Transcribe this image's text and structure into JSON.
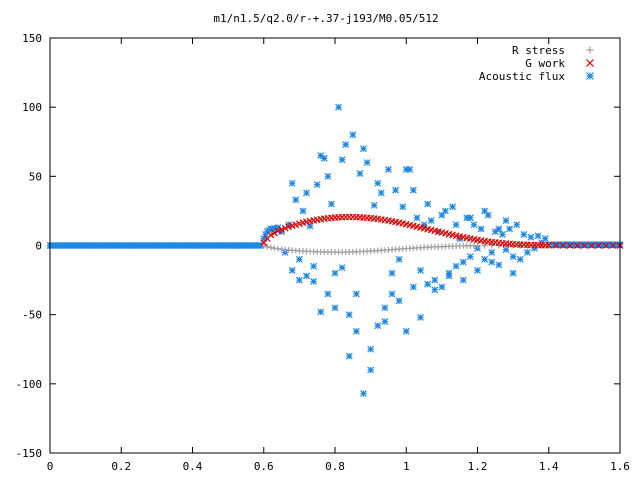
{
  "chart_data": {
    "type": "scatter",
    "title": "m1/n1.5/q2.0/r-+.37-j193/M0.05/512",
    "xlabel": "",
    "ylabel": "",
    "xlim": [
      0,
      1.6
    ],
    "ylim": [
      -150,
      150
    ],
    "grid": false,
    "legend_position": "top-right",
    "x_ticks": [
      "0",
      "0.2",
      "0.4",
      "0.6",
      "0.8",
      "1",
      "1.2",
      "1.4",
      "1.6"
    ],
    "x_tick_values": [
      0,
      0.2,
      0.4,
      0.6,
      0.8,
      1.0,
      1.2,
      1.4,
      1.6
    ],
    "y_ticks": [
      "150",
      "100",
      "50",
      "0",
      "-50",
      "-100",
      "-150"
    ],
    "y_tick_values": [
      150,
      100,
      50,
      0,
      -50,
      -100,
      -150
    ],
    "series": [
      {
        "name": "R stress",
        "marker": "plus",
        "color": "#a0a0a0",
        "points": [
          [
            0.6,
            0.0
          ],
          [
            0.61,
            -1.0
          ],
          [
            0.62,
            -1.5
          ],
          [
            0.63,
            -2.0
          ],
          [
            0.64,
            -2.3
          ],
          [
            0.65,
            -2.7
          ],
          [
            0.66,
            -3.0
          ],
          [
            0.67,
            -3.2
          ],
          [
            0.68,
            -3.5
          ],
          [
            0.69,
            -3.7
          ],
          [
            0.7,
            -3.9
          ],
          [
            0.71,
            -4.0
          ],
          [
            0.72,
            -4.2
          ],
          [
            0.73,
            -4.3
          ],
          [
            0.74,
            -4.4
          ],
          [
            0.75,
            -4.5
          ],
          [
            0.76,
            -4.6
          ],
          [
            0.77,
            -4.7
          ],
          [
            0.78,
            -4.7
          ],
          [
            0.79,
            -4.8
          ],
          [
            0.8,
            -4.8
          ],
          [
            0.81,
            -4.8
          ],
          [
            0.82,
            -4.8
          ],
          [
            0.83,
            -4.8
          ],
          [
            0.84,
            -4.7
          ],
          [
            0.85,
            -4.6
          ],
          [
            0.86,
            -4.5
          ],
          [
            0.87,
            -4.4
          ],
          [
            0.88,
            -4.3
          ],
          [
            0.89,
            -4.2
          ],
          [
            0.9,
            -4.0
          ],
          [
            0.91,
            -3.9
          ],
          [
            0.92,
            -3.7
          ],
          [
            0.93,
            -3.5
          ],
          [
            0.94,
            -3.3
          ],
          [
            0.95,
            -3.2
          ],
          [
            0.96,
            -3.0
          ],
          [
            0.97,
            -2.8
          ],
          [
            0.98,
            -2.6
          ],
          [
            0.99,
            -2.4
          ],
          [
            1.0,
            -2.2
          ],
          [
            1.01,
            -2.1
          ],
          [
            1.02,
            -1.9
          ],
          [
            1.03,
            -1.7
          ],
          [
            1.04,
            -1.6
          ],
          [
            1.05,
            -1.4
          ],
          [
            1.06,
            -1.3
          ],
          [
            1.07,
            -1.1
          ],
          [
            1.08,
            -1.0
          ],
          [
            1.09,
            -0.9
          ],
          [
            1.1,
            -0.8
          ],
          [
            1.11,
            -0.7
          ],
          [
            1.12,
            -0.6
          ],
          [
            1.13,
            -0.5
          ],
          [
            1.14,
            -0.4
          ],
          [
            1.15,
            -0.3
          ],
          [
            1.16,
            -0.3
          ],
          [
            1.17,
            -0.2
          ],
          [
            1.18,
            -0.2
          ],
          [
            1.19,
            -0.1
          ],
          [
            1.2,
            -0.1
          ],
          [
            1.22,
            -0.1
          ],
          [
            1.24,
            0.0
          ],
          [
            1.26,
            0.0
          ],
          [
            1.28,
            0.0
          ],
          [
            1.3,
            0.0
          ],
          [
            1.32,
            0.0
          ],
          [
            1.34,
            0.0
          ],
          [
            1.36,
            0.0
          ],
          [
            1.38,
            0.0
          ],
          [
            1.4,
            0.0
          ]
        ]
      },
      {
        "name": "G work",
        "marker": "cross",
        "color": "#e00000",
        "points": [
          [
            0.6,
            2.0
          ],
          [
            0.61,
            5.0
          ],
          [
            0.62,
            7.5
          ],
          [
            0.63,
            9.0
          ],
          [
            0.64,
            10.5
          ],
          [
            0.65,
            11.5
          ],
          [
            0.66,
            12.5
          ],
          [
            0.67,
            13.5
          ],
          [
            0.68,
            14.3
          ],
          [
            0.69,
            15.0
          ],
          [
            0.7,
            15.8
          ],
          [
            0.71,
            16.5
          ],
          [
            0.72,
            17.0
          ],
          [
            0.73,
            17.6
          ],
          [
            0.74,
            18.1
          ],
          [
            0.75,
            18.6
          ],
          [
            0.76,
            19.0
          ],
          [
            0.77,
            19.4
          ],
          [
            0.78,
            19.7
          ],
          [
            0.79,
            20.0
          ],
          [
            0.8,
            20.2
          ],
          [
            0.81,
            20.4
          ],
          [
            0.82,
            20.5
          ],
          [
            0.83,
            20.6
          ],
          [
            0.84,
            20.6
          ],
          [
            0.85,
            20.6
          ],
          [
            0.86,
            20.5
          ],
          [
            0.87,
            20.4
          ],
          [
            0.88,
            20.2
          ],
          [
            0.89,
            20.0
          ],
          [
            0.9,
            19.8
          ],
          [
            0.91,
            19.5
          ],
          [
            0.92,
            19.2
          ],
          [
            0.93,
            18.8
          ],
          [
            0.94,
            18.4
          ],
          [
            0.95,
            18.0
          ],
          [
            0.96,
            17.5
          ],
          [
            0.97,
            17.0
          ],
          [
            0.98,
            16.5
          ],
          [
            0.99,
            16.0
          ],
          [
            1.0,
            15.4
          ],
          [
            1.01,
            14.8
          ],
          [
            1.02,
            14.2
          ],
          [
            1.03,
            13.6
          ],
          [
            1.04,
            13.0
          ],
          [
            1.05,
            12.4
          ],
          [
            1.06,
            11.8
          ],
          [
            1.07,
            11.2
          ],
          [
            1.08,
            10.6
          ],
          [
            1.09,
            10.0
          ],
          [
            1.1,
            9.4
          ],
          [
            1.11,
            8.8
          ],
          [
            1.12,
            8.2
          ],
          [
            1.13,
            7.6
          ],
          [
            1.14,
            7.0
          ],
          [
            1.15,
            6.5
          ],
          [
            1.16,
            6.0
          ],
          [
            1.17,
            5.5
          ],
          [
            1.18,
            5.0
          ],
          [
            1.19,
            4.5
          ],
          [
            1.2,
            4.0
          ],
          [
            1.21,
            3.6
          ],
          [
            1.22,
            3.2
          ],
          [
            1.23,
            2.8
          ],
          [
            1.24,
            2.5
          ],
          [
            1.25,
            2.2
          ],
          [
            1.26,
            1.9
          ],
          [
            1.27,
            1.6
          ],
          [
            1.28,
            1.4
          ],
          [
            1.29,
            1.2
          ],
          [
            1.3,
            1.0
          ],
          [
            1.31,
            0.8
          ],
          [
            1.32,
            0.7
          ],
          [
            1.33,
            0.6
          ],
          [
            1.34,
            0.5
          ],
          [
            1.35,
            0.4
          ],
          [
            1.36,
            0.3
          ],
          [
            1.37,
            0.3
          ],
          [
            1.38,
            0.2
          ],
          [
            1.39,
            0.2
          ],
          [
            1.4,
            0.1
          ],
          [
            1.42,
            0.1
          ],
          [
            1.44,
            0.0
          ],
          [
            1.46,
            0.0
          ],
          [
            1.48,
            0.0
          ],
          [
            1.5,
            0.0
          ],
          [
            1.52,
            0.0
          ],
          [
            1.54,
            0.0
          ],
          [
            1.56,
            0.0
          ],
          [
            1.58,
            0.0
          ],
          [
            1.6,
            0.0
          ]
        ]
      },
      {
        "name": "Acoustic flux",
        "marker": "star",
        "color": "#1e88e5",
        "flat_ranges": [
          [
            0.0,
            0.595,
            0.0
          ],
          [
            1.4,
            1.6,
            0.5
          ]
        ],
        "points": [
          [
            0.6,
            5
          ],
          [
            0.605,
            8
          ],
          [
            0.61,
            10
          ],
          [
            0.615,
            11
          ],
          [
            0.62,
            12
          ],
          [
            0.625,
            12
          ],
          [
            0.63,
            12.5
          ],
          [
            0.64,
            13
          ],
          [
            0.65,
            10
          ],
          [
            0.66,
            -5
          ],
          [
            0.67,
            15
          ],
          [
            0.68,
            -18
          ],
          [
            0.69,
            33
          ],
          [
            0.7,
            -10
          ],
          [
            0.71,
            25
          ],
          [
            0.72,
            -22
          ],
          [
            0.73,
            14
          ],
          [
            0.74,
            -26
          ],
          [
            0.75,
            44
          ],
          [
            0.76,
            -48
          ],
          [
            0.77,
            63
          ],
          [
            0.78,
            -35
          ],
          [
            0.79,
            30
          ],
          [
            0.8,
            -20
          ],
          [
            0.81,
            100
          ],
          [
            0.82,
            -16
          ],
          [
            0.83,
            73
          ],
          [
            0.84,
            -50
          ],
          [
            0.85,
            80
          ],
          [
            0.86,
            -35
          ],
          [
            0.87,
            52
          ],
          [
            0.88,
            -107
          ],
          [
            0.89,
            60
          ],
          [
            0.9,
            -75
          ],
          [
            0.91,
            29
          ],
          [
            0.92,
            -58
          ],
          [
            0.93,
            38
          ],
          [
            0.94,
            -55
          ],
          [
            0.95,
            55
          ],
          [
            0.96,
            -35
          ],
          [
            0.97,
            40
          ],
          [
            0.98,
            -40
          ],
          [
            0.99,
            28
          ],
          [
            1.0,
            -62
          ],
          [
            1.01,
            55
          ],
          [
            1.02,
            -30
          ],
          [
            1.03,
            20
          ],
          [
            1.04,
            -52
          ],
          [
            1.05,
            15
          ],
          [
            1.06,
            -28
          ],
          [
            1.07,
            18
          ],
          [
            1.08,
            -25
          ],
          [
            1.09,
            10
          ],
          [
            1.1,
            -30
          ],
          [
            1.11,
            25
          ],
          [
            1.12,
            -20
          ],
          [
            1.13,
            28
          ],
          [
            1.14,
            -15
          ],
          [
            1.15,
            5
          ],
          [
            1.16,
            -12
          ],
          [
            1.17,
            20
          ],
          [
            1.18,
            -8
          ],
          [
            1.19,
            15
          ],
          [
            1.2,
            -18
          ],
          [
            1.21,
            12
          ],
          [
            1.22,
            -10
          ],
          [
            1.23,
            22
          ],
          [
            1.24,
            -5
          ],
          [
            1.25,
            10
          ],
          [
            1.26,
            -14
          ],
          [
            1.27,
            8
          ],
          [
            1.28,
            -3
          ],
          [
            1.29,
            12
          ],
          [
            1.3,
            -20
          ],
          [
            1.31,
            15
          ],
          [
            1.32,
            -10
          ],
          [
            1.33,
            8
          ],
          [
            1.34,
            -5
          ],
          [
            1.35,
            6
          ],
          [
            1.36,
            -2
          ],
          [
            1.37,
            7
          ],
          [
            1.38,
            2
          ],
          [
            1.39,
            5
          ],
          [
            0.68,
            45
          ],
          [
            0.7,
            -25
          ],
          [
            0.72,
            38
          ],
          [
            0.74,
            -15
          ],
          [
            0.76,
            65
          ],
          [
            0.78,
            50
          ],
          [
            0.8,
            -45
          ],
          [
            0.82,
            62
          ],
          [
            0.84,
            -80
          ],
          [
            0.86,
            -62
          ],
          [
            0.88,
            70
          ],
          [
            0.9,
            -90
          ],
          [
            0.92,
            45
          ],
          [
            0.94,
            -45
          ],
          [
            0.96,
            -20
          ],
          [
            0.98,
            -10
          ],
          [
            1.0,
            55
          ],
          [
            1.02,
            40
          ],
          [
            1.04,
            -18
          ],
          [
            1.06,
            30
          ],
          [
            1.08,
            -32
          ],
          [
            1.1,
            22
          ],
          [
            1.12,
            -22
          ],
          [
            1.14,
            15
          ],
          [
            1.16,
            -25
          ],
          [
            1.18,
            20
          ],
          [
            1.2,
            -2
          ],
          [
            1.22,
            25
          ],
          [
            1.24,
            -12
          ],
          [
            1.26,
            12
          ],
          [
            1.28,
            18
          ],
          [
            1.3,
            -8
          ]
        ]
      }
    ]
  }
}
